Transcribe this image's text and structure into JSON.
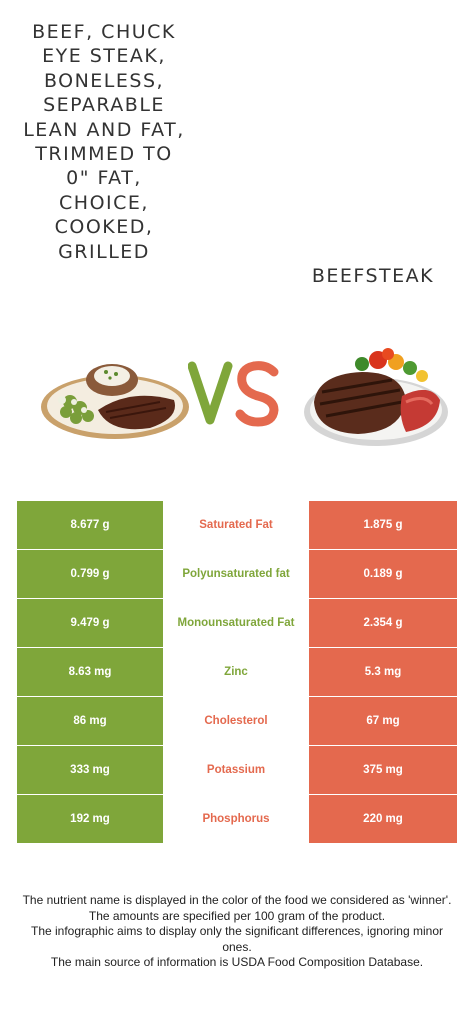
{
  "food_left": {
    "name": "Beef, chuck eye steak, boneless, separable lean and fat, trimmed to 0\" fat, choice, cooked, grilled",
    "image_icon": "steak-plate-with-potato-and-broccoli-image"
  },
  "food_right": {
    "name": "Beefsteak",
    "image_icon": "sliced-beefsteak-with-vegetables-image"
  },
  "vs": {
    "v_color": "#7fa63a",
    "s_color": "#e4694e"
  },
  "colors": {
    "left_winner": "#7fa63a",
    "right_winner": "#e4694e"
  },
  "nutrients": [
    {
      "left": "8.677 g",
      "name": "Saturated Fat",
      "right": "1.875 g",
      "winner": "right"
    },
    {
      "left": "0.799 g",
      "name": "Polyunsaturated fat",
      "right": "0.189 g",
      "winner": "left"
    },
    {
      "left": "9.479 g",
      "name": "Monounsaturated Fat",
      "right": "2.354 g",
      "winner": "left"
    },
    {
      "left": "8.63 mg",
      "name": "Zinc",
      "right": "5.3 mg",
      "winner": "left"
    },
    {
      "left": "86 mg",
      "name": "Cholesterol",
      "right": "67 mg",
      "winner": "right"
    },
    {
      "left": "333 mg",
      "name": "Potassium",
      "right": "375 mg",
      "winner": "right"
    },
    {
      "left": "192 mg",
      "name": "Phosphorus",
      "right": "220 mg",
      "winner": "right"
    }
  ],
  "footer": {
    "line1": "The nutrient name is displayed in the color of the food we considered as 'winner'.",
    "line2": "The amounts are specified per 100 gram of the product.",
    "line3": "The infographic aims to display only the significant differences, ignoring minor ones.",
    "line4": "The main source of information is USDA Food Composition Database."
  }
}
